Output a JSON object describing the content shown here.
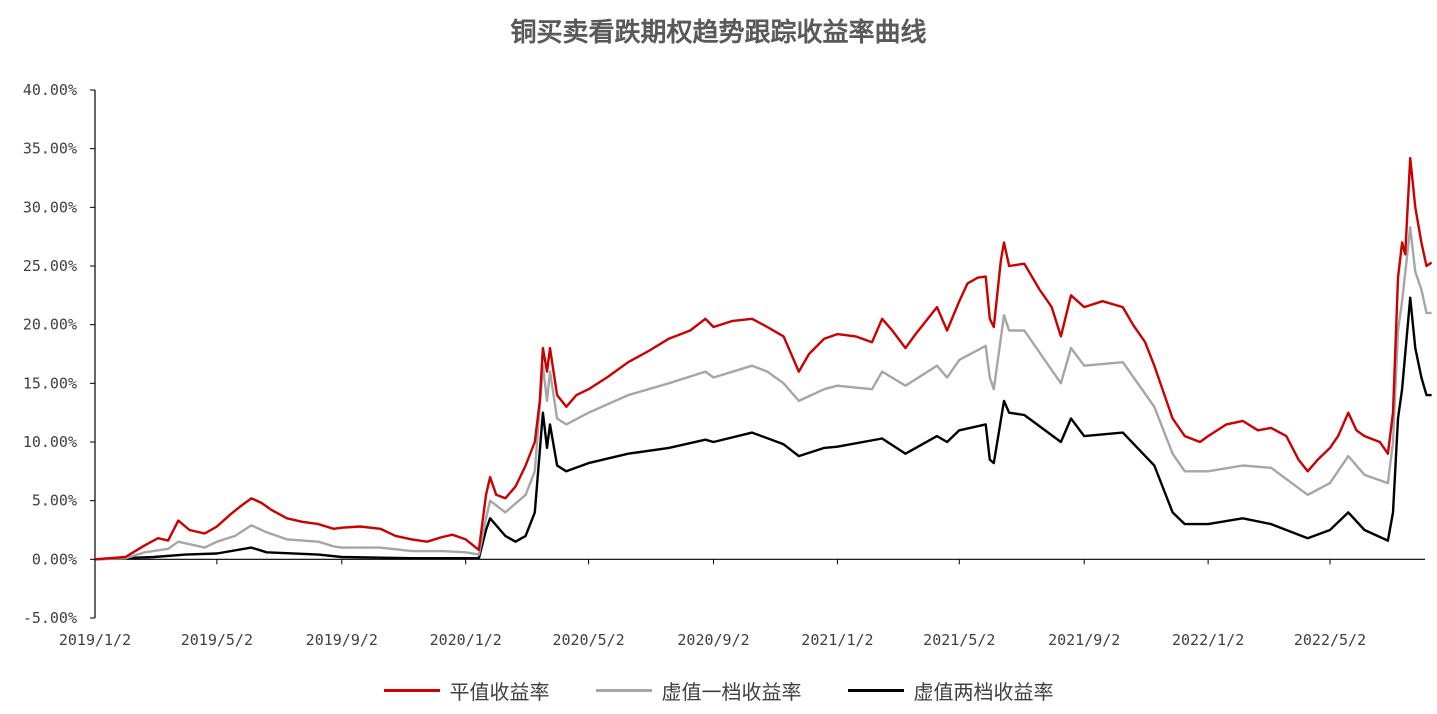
{
  "chart_data": {
    "type": "line",
    "title": "铜买卖看跌期权趋势跟踪收益率曲线",
    "xlabel": "",
    "ylabel": "",
    "x_ticks": [
      "2019/1/2",
      "2019/5/2",
      "2019/9/2",
      "2020/1/2",
      "2020/5/2",
      "2020/9/2",
      "2021/1/2",
      "2021/5/2",
      "2021/9/2",
      "2022/1/2",
      "2022/5/2"
    ],
    "y_ticks": [
      "-5.00%",
      "0.00%",
      "5.00%",
      "10.00%",
      "15.00%",
      "20.00%",
      "25.00%",
      "30.00%",
      "35.00%",
      "40.00%"
    ],
    "ylim": [
      -5,
      40
    ],
    "xlim": [
      "2019-01-02",
      "2022-08-10"
    ],
    "grid": false,
    "legend_position": "bottom",
    "series": [
      {
        "name": "平值收益率",
        "color": "#cc0000",
        "points": [
          [
            "2019-01-02",
            0.0
          ],
          [
            "2019-02-01",
            0.2
          ],
          [
            "2019-02-20",
            1.2
          ],
          [
            "2019-03-05",
            1.8
          ],
          [
            "2019-03-15",
            1.6
          ],
          [
            "2019-03-25",
            3.3
          ],
          [
            "2019-04-05",
            2.5
          ],
          [
            "2019-04-20",
            2.2
          ],
          [
            "2019-05-02",
            2.8
          ],
          [
            "2019-05-15",
            3.8
          ],
          [
            "2019-05-25",
            4.5
          ],
          [
            "2019-06-05",
            5.2
          ],
          [
            "2019-06-15",
            4.8
          ],
          [
            "2019-06-25",
            4.2
          ],
          [
            "2019-07-10",
            3.5
          ],
          [
            "2019-07-25",
            3.2
          ],
          [
            "2019-08-10",
            3.0
          ],
          [
            "2019-08-25",
            2.6
          ],
          [
            "2019-09-02",
            2.7
          ],
          [
            "2019-09-20",
            2.8
          ],
          [
            "2019-10-10",
            2.6
          ],
          [
            "2019-10-25",
            2.0
          ],
          [
            "2019-11-10",
            1.7
          ],
          [
            "2019-11-25",
            1.5
          ],
          [
            "2019-12-10",
            1.9
          ],
          [
            "2019-12-20",
            2.1
          ],
          [
            "2020-01-02",
            1.7
          ],
          [
            "2020-01-15",
            0.8
          ],
          [
            "2020-01-22",
            5.5
          ],
          [
            "2020-01-26",
            7.0
          ],
          [
            "2020-02-01",
            5.5
          ],
          [
            "2020-02-10",
            5.2
          ],
          [
            "2020-02-20",
            6.2
          ],
          [
            "2020-03-01",
            8.0
          ],
          [
            "2020-03-10",
            10.0
          ],
          [
            "2020-03-15",
            13.5
          ],
          [
            "2020-03-18",
            18.0
          ],
          [
            "2020-03-22",
            16.0
          ],
          [
            "2020-03-25",
            18.0
          ],
          [
            "2020-04-01",
            14.0
          ],
          [
            "2020-04-10",
            13.0
          ],
          [
            "2020-04-20",
            14.0
          ],
          [
            "2020-05-02",
            14.5
          ],
          [
            "2020-05-20",
            15.5
          ],
          [
            "2020-06-10",
            16.8
          ],
          [
            "2020-07-01",
            17.8
          ],
          [
            "2020-07-20",
            18.8
          ],
          [
            "2020-08-10",
            19.5
          ],
          [
            "2020-08-25",
            20.5
          ],
          [
            "2020-09-02",
            19.8
          ],
          [
            "2020-09-20",
            20.3
          ],
          [
            "2020-10-10",
            20.5
          ],
          [
            "2020-10-25",
            19.8
          ],
          [
            "2020-11-10",
            19.0
          ],
          [
            "2020-11-25",
            16.0
          ],
          [
            "2020-12-05",
            17.5
          ],
          [
            "2020-12-20",
            18.8
          ],
          [
            "2021-01-02",
            19.2
          ],
          [
            "2021-01-20",
            19.0
          ],
          [
            "2021-02-05",
            18.5
          ],
          [
            "2021-02-15",
            20.5
          ],
          [
            "2021-02-25",
            19.5
          ],
          [
            "2021-03-10",
            18.0
          ],
          [
            "2021-03-20",
            19.2
          ],
          [
            "2021-04-01",
            20.5
          ],
          [
            "2021-04-10",
            21.5
          ],
          [
            "2021-04-20",
            19.5
          ],
          [
            "2021-05-02",
            22.0
          ],
          [
            "2021-05-10",
            23.5
          ],
          [
            "2021-05-20",
            24.0
          ],
          [
            "2021-05-28",
            24.1
          ],
          [
            "2021-06-01",
            20.5
          ],
          [
            "2021-06-05",
            19.8
          ],
          [
            "2021-06-12",
            25.5
          ],
          [
            "2021-06-15",
            27.0
          ],
          [
            "2021-06-20",
            25.0
          ],
          [
            "2021-07-05",
            25.2
          ],
          [
            "2021-07-20",
            23.0
          ],
          [
            "2021-08-01",
            21.5
          ],
          [
            "2021-08-10",
            19.0
          ],
          [
            "2021-08-20",
            22.5
          ],
          [
            "2021-09-02",
            21.5
          ],
          [
            "2021-09-20",
            22.0
          ],
          [
            "2021-10-10",
            21.5
          ],
          [
            "2021-10-20",
            20.0
          ],
          [
            "2021-11-01",
            18.5
          ],
          [
            "2021-11-10",
            16.5
          ],
          [
            "2021-11-20",
            14.0
          ],
          [
            "2021-11-28",
            12.0
          ],
          [
            "2021-12-10",
            10.5
          ],
          [
            "2021-12-25",
            10.0
          ],
          [
            "2022-01-02",
            10.5
          ],
          [
            "2022-01-20",
            11.5
          ],
          [
            "2022-02-05",
            11.8
          ],
          [
            "2022-02-20",
            11.0
          ],
          [
            "2022-03-05",
            11.2
          ],
          [
            "2022-03-20",
            10.5
          ],
          [
            "2022-04-01",
            8.5
          ],
          [
            "2022-04-10",
            7.5
          ],
          [
            "2022-04-20",
            8.5
          ],
          [
            "2022-05-02",
            9.5
          ],
          [
            "2022-05-10",
            10.5
          ],
          [
            "2022-05-20",
            12.5
          ],
          [
            "2022-05-28",
            11.0
          ],
          [
            "2022-06-05",
            10.5
          ],
          [
            "2022-06-20",
            10.0
          ],
          [
            "2022-06-28",
            9.0
          ],
          [
            "2022-07-03",
            12.5
          ],
          [
            "2022-07-08",
            24.0
          ],
          [
            "2022-07-12",
            27.0
          ],
          [
            "2022-07-15",
            26.0
          ],
          [
            "2022-07-20",
            34.2
          ],
          [
            "2022-07-25",
            30.0
          ],
          [
            "2022-07-31",
            27.0
          ],
          [
            "2022-08-05",
            25.0
          ],
          [
            "2022-08-10",
            25.3
          ]
        ]
      },
      {
        "name": "虚值一档收益率",
        "color": "#a6a6a6",
        "points": [
          [
            "2019-01-02",
            0.0
          ],
          [
            "2019-02-01",
            0.1
          ],
          [
            "2019-02-20",
            0.6
          ],
          [
            "2019-03-15",
            0.9
          ],
          [
            "2019-03-25",
            1.5
          ],
          [
            "2019-04-20",
            1.0
          ],
          [
            "2019-05-02",
            1.5
          ],
          [
            "2019-05-20",
            2.0
          ],
          [
            "2019-06-05",
            2.9
          ],
          [
            "2019-06-20",
            2.3
          ],
          [
            "2019-07-10",
            1.7
          ],
          [
            "2019-08-10",
            1.5
          ],
          [
            "2019-08-25",
            1.1
          ],
          [
            "2019-09-02",
            1.0
          ],
          [
            "2019-10-10",
            1.0
          ],
          [
            "2019-11-10",
            0.7
          ],
          [
            "2019-12-10",
            0.7
          ],
          [
            "2020-01-02",
            0.6
          ],
          [
            "2020-01-15",
            0.4
          ],
          [
            "2020-01-22",
            3.5
          ],
          [
            "2020-01-26",
            5.0
          ],
          [
            "2020-02-10",
            4.0
          ],
          [
            "2020-03-01",
            5.5
          ],
          [
            "2020-03-10",
            7.5
          ],
          [
            "2020-03-18",
            16.5
          ],
          [
            "2020-03-22",
            13.5
          ],
          [
            "2020-03-25",
            16.0
          ],
          [
            "2020-04-01",
            12.0
          ],
          [
            "2020-04-10",
            11.5
          ],
          [
            "2020-05-02",
            12.5
          ],
          [
            "2020-06-10",
            14.0
          ],
          [
            "2020-07-20",
            15.0
          ],
          [
            "2020-08-25",
            16.0
          ],
          [
            "2020-09-02",
            15.5
          ],
          [
            "2020-10-10",
            16.5
          ],
          [
            "2020-10-25",
            16.0
          ],
          [
            "2020-11-10",
            15.0
          ],
          [
            "2020-11-25",
            13.5
          ],
          [
            "2020-12-20",
            14.5
          ],
          [
            "2021-01-02",
            14.8
          ],
          [
            "2021-02-05",
            14.5
          ],
          [
            "2021-02-15",
            16.0
          ],
          [
            "2021-03-10",
            14.8
          ],
          [
            "2021-04-10",
            16.5
          ],
          [
            "2021-04-20",
            15.5
          ],
          [
            "2021-05-02",
            17.0
          ],
          [
            "2021-05-28",
            18.2
          ],
          [
            "2021-06-01",
            15.5
          ],
          [
            "2021-06-05",
            14.5
          ],
          [
            "2021-06-15",
            20.8
          ],
          [
            "2021-06-20",
            19.5
          ],
          [
            "2021-07-05",
            19.5
          ],
          [
            "2021-08-10",
            15.0
          ],
          [
            "2021-08-20",
            18.0
          ],
          [
            "2021-09-02",
            16.5
          ],
          [
            "2021-10-10",
            16.8
          ],
          [
            "2021-11-10",
            13.0
          ],
          [
            "2021-11-28",
            9.0
          ],
          [
            "2021-12-10",
            7.5
          ],
          [
            "2022-01-02",
            7.5
          ],
          [
            "2022-02-05",
            8.0
          ],
          [
            "2022-03-05",
            7.8
          ],
          [
            "2022-04-10",
            5.5
          ],
          [
            "2022-05-02",
            6.5
          ],
          [
            "2022-05-20",
            8.8
          ],
          [
            "2022-06-05",
            7.2
          ],
          [
            "2022-06-28",
            6.5
          ],
          [
            "2022-07-03",
            10.0
          ],
          [
            "2022-07-08",
            19.5
          ],
          [
            "2022-07-12",
            22.0
          ],
          [
            "2022-07-20",
            28.3
          ],
          [
            "2022-07-25",
            24.5
          ],
          [
            "2022-07-31",
            23.0
          ],
          [
            "2022-08-05",
            21.0
          ],
          [
            "2022-08-10",
            21.0
          ]
        ]
      },
      {
        "name": "虚值两档收益率",
        "color": "#000000",
        "points": [
          [
            "2019-01-02",
            0.0
          ],
          [
            "2019-03-01",
            0.2
          ],
          [
            "2019-04-01",
            0.4
          ],
          [
            "2019-05-02",
            0.5
          ],
          [
            "2019-06-05",
            1.0
          ],
          [
            "2019-06-20",
            0.6
          ],
          [
            "2019-08-10",
            0.4
          ],
          [
            "2019-09-02",
            0.2
          ],
          [
            "2019-11-10",
            0.1
          ],
          [
            "2020-01-02",
            0.1
          ],
          [
            "2020-01-15",
            0.1
          ],
          [
            "2020-01-22",
            2.5
          ],
          [
            "2020-01-26",
            3.5
          ],
          [
            "2020-02-10",
            2.0
          ],
          [
            "2020-02-20",
            1.5
          ],
          [
            "2020-03-01",
            2.0
          ],
          [
            "2020-03-10",
            4.0
          ],
          [
            "2020-03-18",
            12.5
          ],
          [
            "2020-03-22",
            9.5
          ],
          [
            "2020-03-25",
            11.5
          ],
          [
            "2020-04-01",
            8.0
          ],
          [
            "2020-04-10",
            7.5
          ],
          [
            "2020-05-02",
            8.2
          ],
          [
            "2020-06-10",
            9.0
          ],
          [
            "2020-07-20",
            9.5
          ],
          [
            "2020-08-25",
            10.2
          ],
          [
            "2020-09-02",
            10.0
          ],
          [
            "2020-10-10",
            10.8
          ],
          [
            "2020-11-10",
            9.8
          ],
          [
            "2020-11-25",
            8.8
          ],
          [
            "2020-12-20",
            9.5
          ],
          [
            "2021-01-02",
            9.6
          ],
          [
            "2021-02-15",
            10.3
          ],
          [
            "2021-03-10",
            9.0
          ],
          [
            "2021-04-10",
            10.5
          ],
          [
            "2021-04-20",
            10.0
          ],
          [
            "2021-05-02",
            11.0
          ],
          [
            "2021-05-28",
            11.5
          ],
          [
            "2021-06-01",
            8.5
          ],
          [
            "2021-06-05",
            8.2
          ],
          [
            "2021-06-15",
            13.5
          ],
          [
            "2021-06-20",
            12.5
          ],
          [
            "2021-07-05",
            12.3
          ],
          [
            "2021-08-10",
            10.0
          ],
          [
            "2021-08-20",
            12.0
          ],
          [
            "2021-09-02",
            10.5
          ],
          [
            "2021-10-10",
            10.8
          ],
          [
            "2021-11-10",
            8.0
          ],
          [
            "2021-11-28",
            4.0
          ],
          [
            "2021-12-10",
            3.0
          ],
          [
            "2022-01-02",
            3.0
          ],
          [
            "2022-02-05",
            3.5
          ],
          [
            "2022-03-05",
            3.0
          ],
          [
            "2022-04-10",
            1.8
          ],
          [
            "2022-05-02",
            2.5
          ],
          [
            "2022-05-20",
            4.0
          ],
          [
            "2022-06-05",
            2.5
          ],
          [
            "2022-06-28",
            1.6
          ],
          [
            "2022-07-03",
            4.0
          ],
          [
            "2022-07-08",
            12.0
          ],
          [
            "2022-07-12",
            14.5
          ],
          [
            "2022-07-20",
            22.3
          ],
          [
            "2022-07-25",
            18.0
          ],
          [
            "2022-07-31",
            15.5
          ],
          [
            "2022-08-05",
            14.0
          ],
          [
            "2022-08-10",
            14.0
          ]
        ]
      }
    ]
  }
}
